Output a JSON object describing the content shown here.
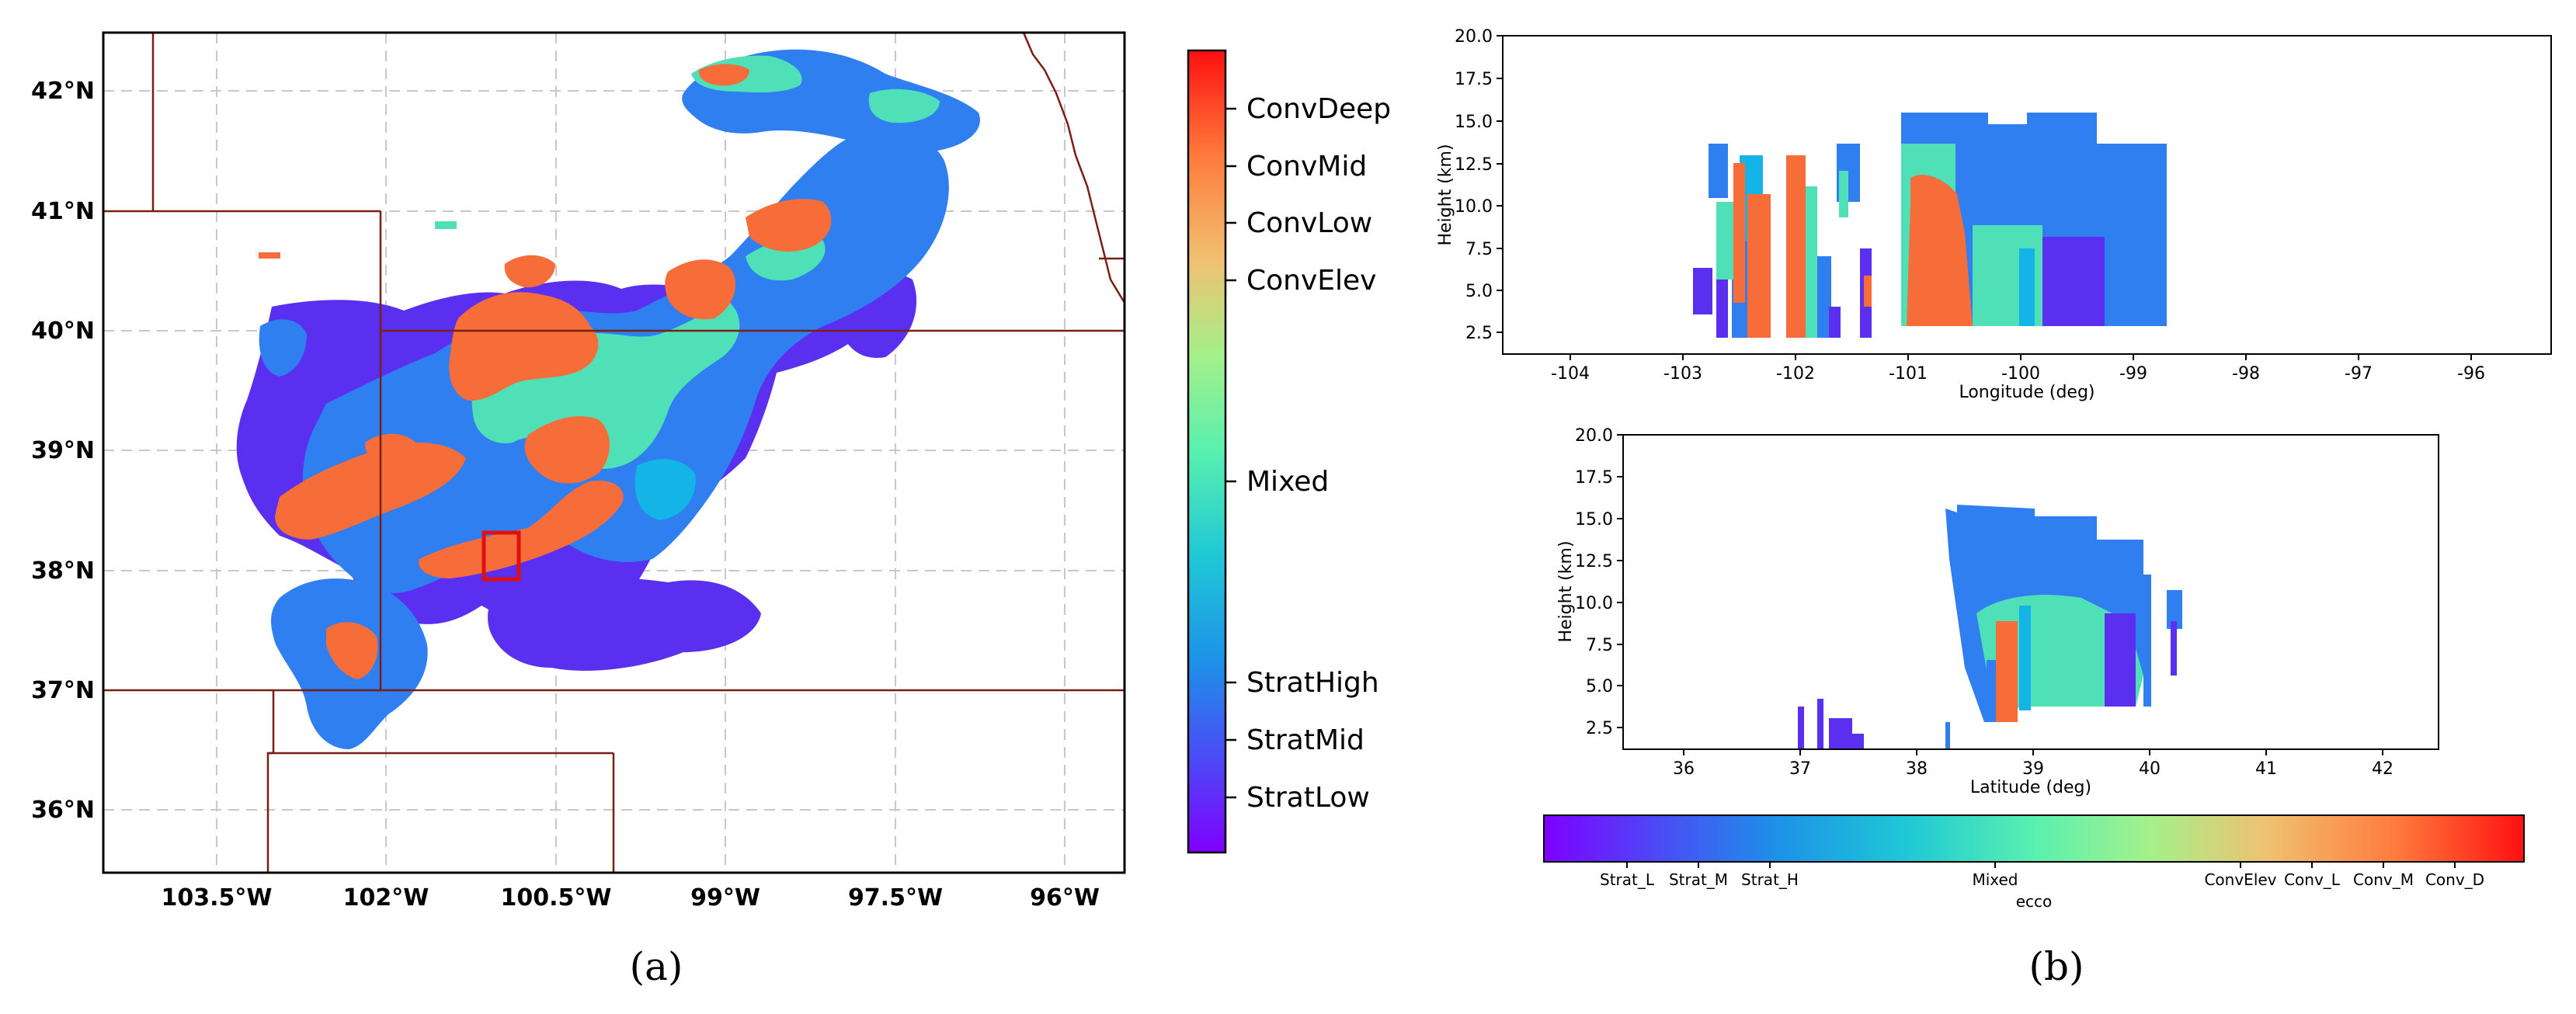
{
  "panel_a": {
    "label": "(a)",
    "lat_labels": [
      "42°N",
      "41°N",
      "40°N",
      "39°N",
      "38°N",
      "37°N",
      "36°N"
    ],
    "lon_labels": [
      "103.5°W",
      "102°W",
      "100.5°W",
      "99°W",
      "97.5°W",
      "96°W"
    ],
    "colorbar_labels": [
      "ConvDeep",
      "ConvMid",
      "ConvLow",
      "ConvElev",
      "Mixed",
      "StratHigh",
      "StratMid",
      "StratLow"
    ],
    "colors": {
      "strat_low": "#5a2ff0",
      "strat_mid": "#2f7ff0",
      "strat_high": "#14b4e6",
      "mixed": "#4fe0b8",
      "conv_elev": "#f8b060",
      "conv": "#f76d3a",
      "conv_deep": "#e82010",
      "border": "#7a1f14",
      "box": "#e01010"
    }
  },
  "panel_b": {
    "label": "(b)",
    "top": {
      "xlabel": "Longitude (deg)",
      "ylabel": "Height (km)",
      "xticks": [
        "-104",
        "-103",
        "-102",
        "-101",
        "-100",
        "-99",
        "-98",
        "-97",
        "-96"
      ],
      "yticks": [
        "2.5",
        "5.0",
        "7.5",
        "10.0",
        "12.5",
        "15.0",
        "17.5",
        "20.0"
      ]
    },
    "bottom": {
      "xlabel": "Latitude (deg)",
      "ylabel": "Height (km)",
      "xticks": [
        "36",
        "37",
        "38",
        "39",
        "40",
        "41",
        "42"
      ],
      "yticks": [
        "2.5",
        "5.0",
        "7.5",
        "10.0",
        "12.5",
        "15.0",
        "17.5",
        "20.0"
      ]
    },
    "colorbar": {
      "title": "ecco",
      "labels": [
        "Strat_L",
        "Strat_M",
        "Strat_H",
        "Mixed",
        "ConvElev",
        "Conv_L",
        "Conv_M",
        "Conv_D"
      ]
    }
  }
}
